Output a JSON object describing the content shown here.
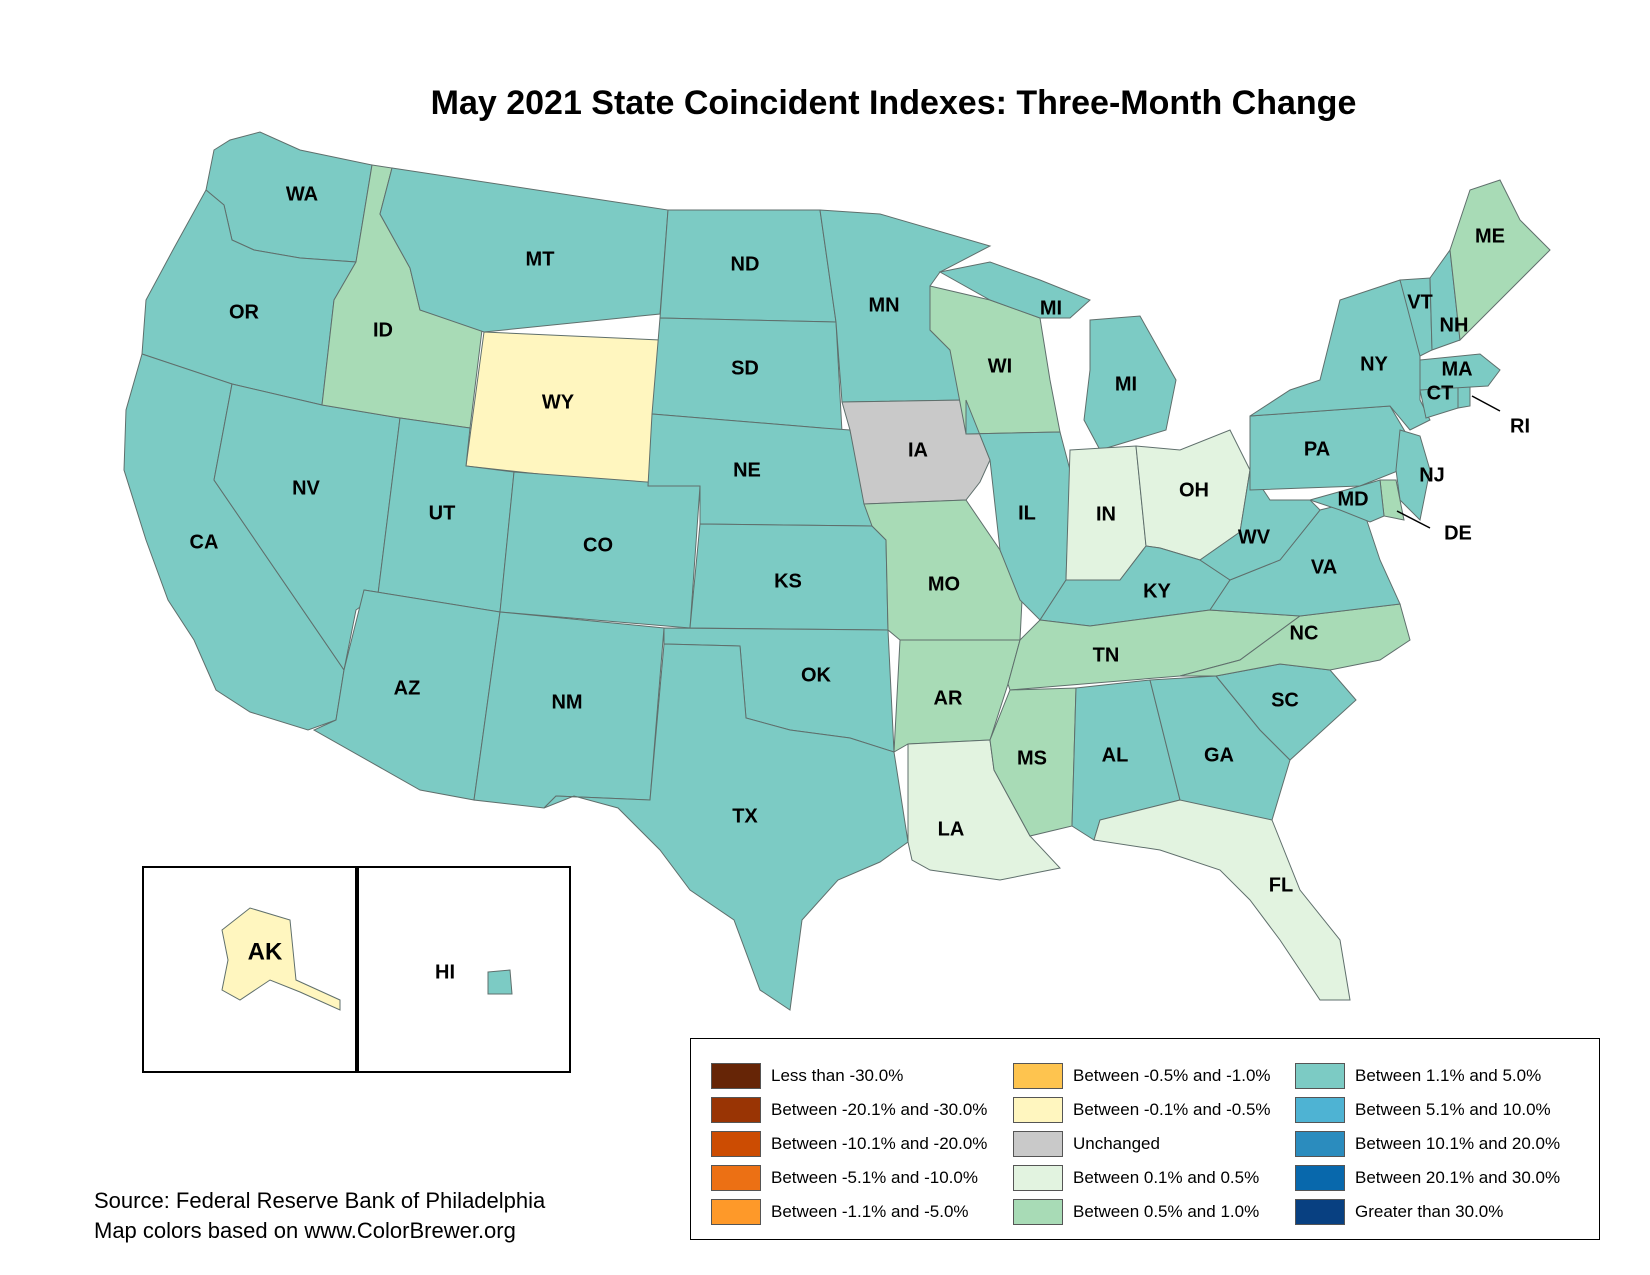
{
  "title": "May 2021 State Coincident Indexes: Three-Month Change",
  "colors": {
    "c1": "#7ccbc4",
    "c2": "#a8dbb6",
    "c3": "#e2f3e0",
    "c4": "#c9c9c9",
    "c5": "#fff6bf"
  },
  "states": {
    "WA": {
      "label": "WA",
      "class": "Between 1.1% and 5.0%"
    },
    "OR": {
      "label": "OR",
      "class": "Between 1.1% and 5.0%"
    },
    "CA": {
      "label": "CA",
      "class": "Between 1.1% and 5.0%"
    },
    "NV": {
      "label": "NV",
      "class": "Between 1.1% and 5.0%"
    },
    "ID": {
      "label": "ID",
      "class": "Between 0.5% and 1.0%"
    },
    "MT": {
      "label": "MT",
      "class": "Between 1.1% and 5.0%"
    },
    "WY": {
      "label": "WY",
      "class": "Between -0.1% and -0.5%"
    },
    "UT": {
      "label": "UT",
      "class": "Between 1.1% and 5.0%"
    },
    "AZ": {
      "label": "AZ",
      "class": "Between 1.1% and 5.0%"
    },
    "CO": {
      "label": "CO",
      "class": "Between 1.1% and 5.0%"
    },
    "NM": {
      "label": "NM",
      "class": "Between 1.1% and 5.0%"
    },
    "ND": {
      "label": "ND",
      "class": "Between 1.1% and 5.0%"
    },
    "SD": {
      "label": "SD",
      "class": "Between 1.1% and 5.0%"
    },
    "NE": {
      "label": "NE",
      "class": "Between 1.1% and 5.0%"
    },
    "KS": {
      "label": "KS",
      "class": "Between 1.1% and 5.0%"
    },
    "OK": {
      "label": "OK",
      "class": "Between 1.1% and 5.0%"
    },
    "TX": {
      "label": "TX",
      "class": "Between 1.1% and 5.0%"
    },
    "MN": {
      "label": "MN",
      "class": "Between 1.1% and 5.0%"
    },
    "IA": {
      "label": "IA",
      "class": "Unchanged"
    },
    "MO": {
      "label": "MO",
      "class": "Between 0.5% and 1.0%"
    },
    "AR": {
      "label": "AR",
      "class": "Between 0.5% and 1.0%"
    },
    "LA": {
      "label": "LA",
      "class": "Between 0.1% and 0.5%"
    },
    "WI": {
      "label": "WI",
      "class": "Between 0.5% and 1.0%"
    },
    "IL": {
      "label": "IL",
      "class": "Between 1.1% and 5.0%"
    },
    "MI": {
      "label": "MI",
      "class": "Between 1.1% and 5.0%"
    },
    "MI_UP": {
      "label": "MI",
      "class": "Between 1.1% and 5.0%"
    },
    "IN": {
      "label": "IN",
      "class": "Between 0.1% and 0.5%"
    },
    "OH": {
      "label": "OH",
      "class": "Between 0.1% and 0.5%"
    },
    "KY": {
      "label": "KY",
      "class": "Between 1.1% and 5.0%"
    },
    "TN": {
      "label": "TN",
      "class": "Between 0.5% and 1.0%"
    },
    "MS": {
      "label": "MS",
      "class": "Between 0.5% and 1.0%"
    },
    "AL": {
      "label": "AL",
      "class": "Between 1.1% and 5.0%"
    },
    "GA": {
      "label": "GA",
      "class": "Between 1.1% and 5.0%"
    },
    "FL": {
      "label": "FL",
      "class": "Between 0.1% and 0.5%"
    },
    "SC": {
      "label": "SC",
      "class": "Between 1.1% and 5.0%"
    },
    "NC": {
      "label": "NC",
      "class": "Between 0.5% and 1.0%"
    },
    "VA": {
      "label": "VA",
      "class": "Between 1.1% and 5.0%"
    },
    "WV": {
      "label": "WV",
      "class": "Between 1.1% and 5.0%"
    },
    "PA": {
      "label": "PA",
      "class": "Between 1.1% and 5.0%"
    },
    "NY": {
      "label": "NY",
      "class": "Between 1.1% and 5.0%"
    },
    "NJ": {
      "label": "NJ",
      "class": "Between 1.1% and 5.0%"
    },
    "DE": {
      "label": "DE",
      "class": "Between 0.5% and 1.0%"
    },
    "MD": {
      "label": "MD",
      "class": "Between 1.1% and 5.0%"
    },
    "CT": {
      "label": "CT",
      "class": "Between 1.1% and 5.0%"
    },
    "RI": {
      "label": "RI",
      "class": "Between 1.1% and 5.0%"
    },
    "MA": {
      "label": "MA",
      "class": "Between 1.1% and 5.0%"
    },
    "VT": {
      "label": "VT",
      "class": "Between 1.1% and 5.0%"
    },
    "NH": {
      "label": "NH",
      "class": "Between 1.1% and 5.0%"
    },
    "ME": {
      "label": "ME",
      "class": "Between 0.5% and 1.0%"
    },
    "AK": {
      "label": "AK",
      "class": "Between -0.1% and -0.5%"
    },
    "HI": {
      "label": "HI",
      "class": "Between 1.1% and 5.0%"
    }
  },
  "legend": [
    [
      {
        "label": "Less than -30.0%",
        "color": "#662506"
      },
      {
        "label": "Between -20.1% and -30.0%",
        "color": "#993404"
      },
      {
        "label": "Between -10.1% and -20.0%",
        "color": "#cc4c02"
      },
      {
        "label": "Between -5.1% and -10.0%",
        "color": "#ec7014"
      },
      {
        "label": "Between -1.1% and -5.0%",
        "color": "#fe9929"
      }
    ],
    [
      {
        "label": "Between -0.5% and -1.0%",
        "color": "#fec44f"
      },
      {
        "label": "Between -0.1% and -0.5%",
        "color": "#fff6bf"
      },
      {
        "label": "Unchanged",
        "color": "#c9c9c9"
      },
      {
        "label": "Between 0.1% and 0.5%",
        "color": "#e2f3e0"
      },
      {
        "label": "Between 0.5% and 1.0%",
        "color": "#a8dbb6"
      }
    ],
    [
      {
        "label": "Between 1.1% and 5.0%",
        "color": "#7ccbc4"
      },
      {
        "label": "Between 5.1% and 10.0%",
        "color": "#4eb3d3"
      },
      {
        "label": "Between 10.1% and 20.0%",
        "color": "#2b8cbe"
      },
      {
        "label": "Between 20.1% and 30.0%",
        "color": "#0868ac"
      },
      {
        "label": "Greater than 30.0%",
        "color": "#084081"
      }
    ]
  ],
  "source": {
    "line1": "Source: Federal Reserve Bank of Philadelphia",
    "line2": "Map colors based on www.ColorBrewer.org"
  }
}
